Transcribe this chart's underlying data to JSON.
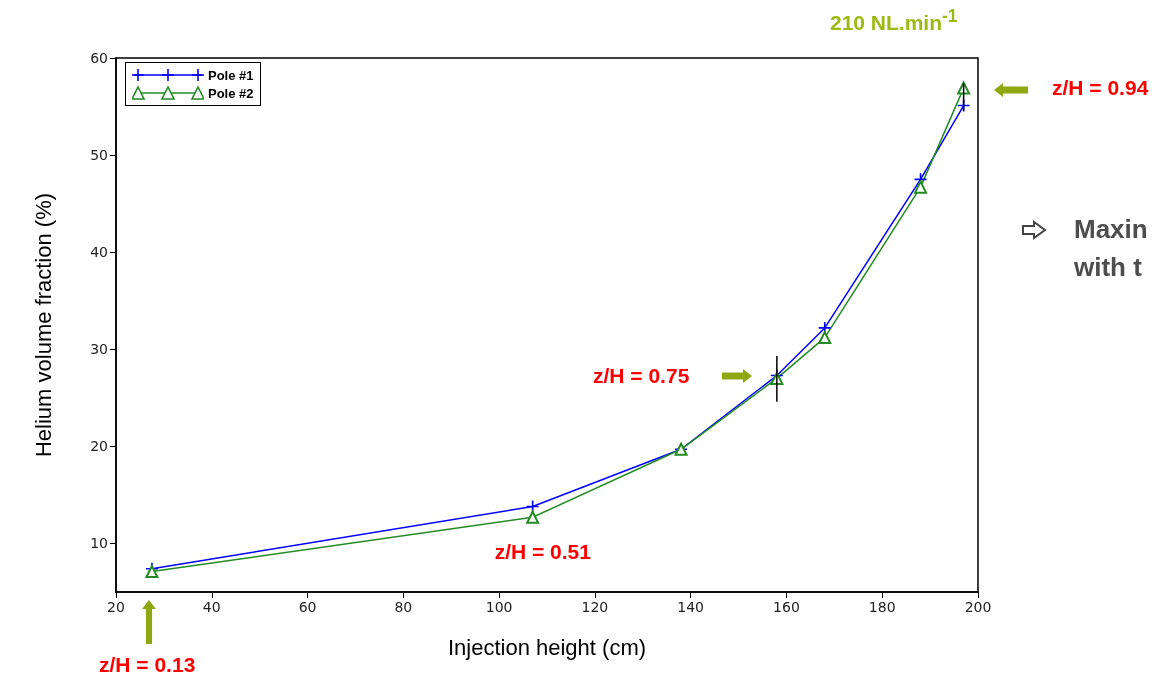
{
  "chart_data": {
    "type": "line",
    "title": "210 NL.min$^{-1}$",
    "xlabel": "Injection height (cm)",
    "ylabel": "Helium volume fraction (%)",
    "x": [
      27.5,
      107,
      138,
      158,
      168,
      188,
      197
    ],
    "series": [
      {
        "name": "Pole #1",
        "color": "#0000ff",
        "marker": "cross",
        "values": [
          7.4,
          13.8,
          19.7,
          27.3,
          32.2,
          47.5,
          55.1
        ],
        "errors": [
          null,
          null,
          null,
          [
            24.6,
            29.3
          ],
          null,
          null,
          [
            54.6,
            57.4
          ]
        ]
      },
      {
        "name": "Pole #2",
        "color": "#228b22",
        "marker": "triangle",
        "values": [
          7.1,
          12.7,
          19.7,
          27.0,
          31.2,
          46.7,
          56.9
        ]
      }
    ],
    "xlim": [
      20,
      200
    ],
    "xticks": [
      20,
      40,
      60,
      80,
      100,
      120,
      140,
      160,
      180,
      200
    ],
    "ylim": [
      5,
      60
    ],
    "yticks": [
      10,
      20,
      30,
      40,
      50,
      60
    ],
    "grid": false,
    "legend": "top left",
    "line_style": "solid",
    "annotations": [
      "z/H = 0.13",
      {
        "text": "z/H = 0.51",
        "x": 107,
        "y": 12.7
      },
      "z/H = 0.75",
      "z/H = 0.94",
      "Maxin",
      "with t"
    ]
  }
}
